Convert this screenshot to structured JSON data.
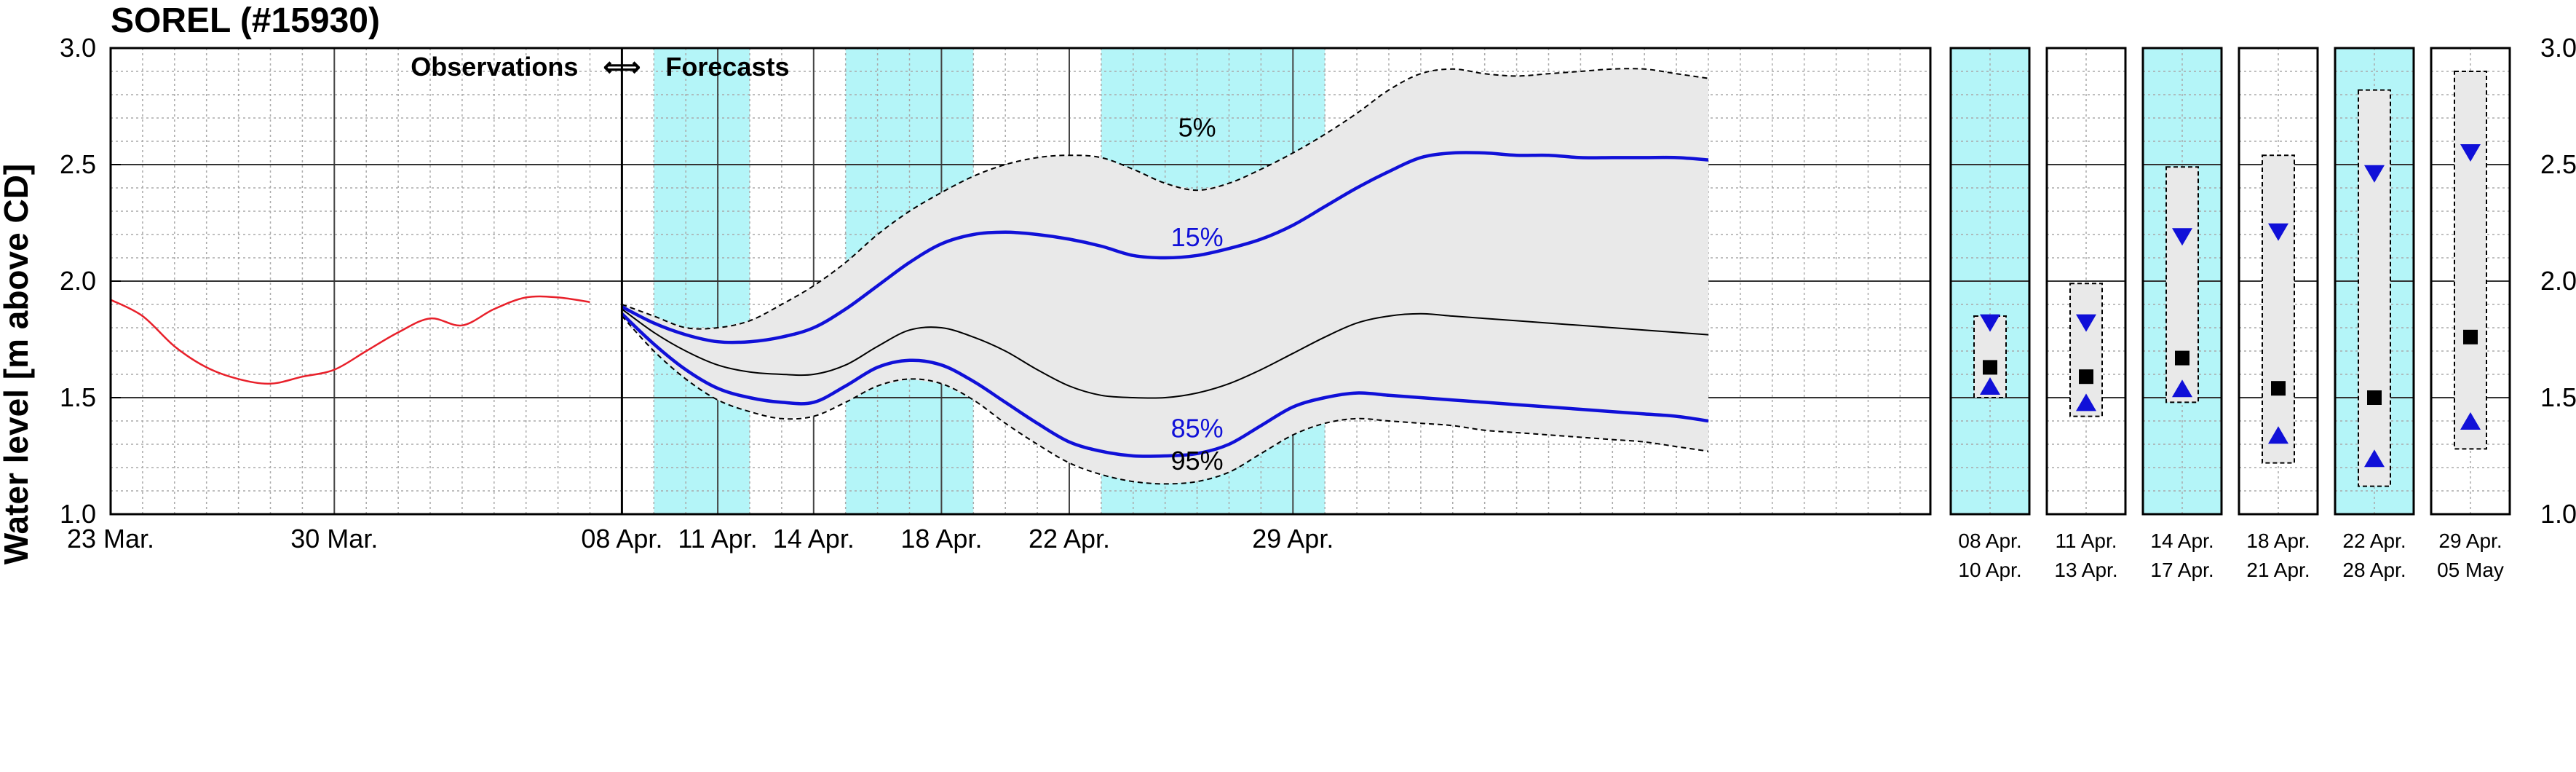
{
  "title": "SOREL (#15930)",
  "ylabel": "Water level [m above CD]",
  "divider_label": {
    "left": "Observations",
    "arrow": "⟺",
    "right": "Forecasts"
  },
  "colors": {
    "shade": "#b4f5f8",
    "band": "#e9e9e9",
    "observed": "#e8202a",
    "percentile": "#1010d8",
    "median": "#000000"
  },
  "chart_data": [
    {
      "type": "line",
      "title": "SOREL (#15930)",
      "xlabel": "",
      "ylabel": "Water level [m above CD]",
      "ylim": [
        1.0,
        3.0
      ],
      "xlim": [
        0,
        50
      ],
      "x_unit": "days from 23 Mar.",
      "grid": true,
      "y_ticks": [
        "1.0",
        "1.5",
        "2.0",
        "2.5",
        "3.0"
      ],
      "x_ticks": [
        {
          "x": 0,
          "label": "23 Mar."
        },
        {
          "x": 7,
          "label": "30 Mar."
        },
        {
          "x": 16,
          "label": "08 Apr."
        },
        {
          "x": 19,
          "label": "11 Apr."
        },
        {
          "x": 22,
          "label": "14 Apr."
        },
        {
          "x": 26,
          "label": "18 Apr."
        },
        {
          "x": 30,
          "label": "22 Apr."
        },
        {
          "x": 37,
          "label": "29 Apr."
        }
      ],
      "shaded_periods": [
        [
          17,
          20
        ],
        [
          23,
          27
        ],
        [
          31,
          38
        ]
      ],
      "observations_end_x": 16,
      "annotations": [
        "Observations",
        "Forecasts",
        "5%",
        "15%",
        "85%",
        "95%"
      ],
      "series": [
        {
          "name": "observed",
          "style": "red",
          "x": [
            0,
            1,
            2,
            3,
            4,
            5,
            6,
            7,
            8,
            9,
            10,
            11,
            12,
            13,
            14,
            15
          ],
          "y": [
            1.92,
            1.85,
            1.72,
            1.63,
            1.58,
            1.56,
            1.59,
            1.62,
            1.7,
            1.78,
            1.84,
            1.81,
            1.88,
            1.93,
            1.93,
            1.91
          ]
        },
        {
          "name": "5%",
          "label_x": 34,
          "label_y": 2.62,
          "style": "dashed",
          "x": [
            16,
            17,
            18,
            19,
            20,
            21,
            22,
            23,
            24,
            25,
            26,
            27,
            28,
            29,
            30,
            31,
            32,
            33,
            34,
            35,
            36,
            37,
            38,
            39,
            40,
            41,
            42,
            43,
            44,
            45,
            46,
            47,
            48,
            49,
            50
          ],
          "y": [
            1.9,
            1.85,
            1.8,
            1.8,
            1.83,
            1.9,
            1.98,
            2.08,
            2.2,
            2.3,
            2.38,
            2.45,
            2.5,
            2.53,
            2.54,
            2.53,
            2.48,
            2.42,
            2.39,
            2.42,
            2.48,
            2.55,
            2.63,
            2.72,
            2.82,
            2.89,
            2.91,
            2.89,
            2.88,
            2.89,
            2.9,
            2.91,
            2.91,
            2.89,
            2.87
          ]
        },
        {
          "name": "15%",
          "label_x": 34,
          "label_y": 2.15,
          "style": "blue",
          "x": [
            16,
            17,
            18,
            19,
            20,
            21,
            22,
            23,
            24,
            25,
            26,
            27,
            28,
            29,
            30,
            31,
            32,
            33,
            34,
            35,
            36,
            37,
            38,
            39,
            40,
            41,
            42,
            43,
            44,
            45,
            46,
            47,
            48,
            49,
            50
          ],
          "y": [
            1.89,
            1.82,
            1.77,
            1.74,
            1.74,
            1.76,
            1.8,
            1.88,
            1.98,
            2.08,
            2.16,
            2.2,
            2.21,
            2.2,
            2.18,
            2.15,
            2.11,
            2.1,
            2.11,
            2.14,
            2.18,
            2.24,
            2.32,
            2.4,
            2.47,
            2.53,
            2.55,
            2.55,
            2.54,
            2.54,
            2.53,
            2.53,
            2.53,
            2.53,
            2.52
          ]
        },
        {
          "name": "median",
          "style": "black",
          "x": [
            16,
            17,
            18,
            19,
            20,
            21,
            22,
            23,
            24,
            25,
            26,
            27,
            28,
            29,
            30,
            31,
            32,
            33,
            34,
            35,
            36,
            37,
            38,
            39,
            40,
            41,
            42,
            43,
            44,
            45,
            46,
            47,
            48,
            49,
            50
          ],
          "y": [
            1.88,
            1.78,
            1.7,
            1.64,
            1.61,
            1.6,
            1.6,
            1.64,
            1.72,
            1.79,
            1.8,
            1.76,
            1.7,
            1.62,
            1.55,
            1.51,
            1.5,
            1.5,
            1.52,
            1.56,
            1.62,
            1.69,
            1.76,
            1.82,
            1.85,
            1.86,
            1.85,
            1.84,
            1.83,
            1.82,
            1.81,
            1.8,
            1.79,
            1.78,
            1.77
          ]
        },
        {
          "name": "85%",
          "label_x": 34,
          "label_y": 1.33,
          "style": "blue",
          "x": [
            16,
            17,
            18,
            19,
            20,
            21,
            22,
            23,
            24,
            25,
            26,
            27,
            28,
            29,
            30,
            31,
            32,
            33,
            34,
            35,
            36,
            37,
            38,
            39,
            40,
            41,
            42,
            43,
            44,
            45,
            46,
            47,
            48,
            49,
            50
          ],
          "y": [
            1.86,
            1.73,
            1.62,
            1.54,
            1.5,
            1.48,
            1.48,
            1.55,
            1.63,
            1.66,
            1.64,
            1.57,
            1.48,
            1.39,
            1.31,
            1.27,
            1.25,
            1.25,
            1.26,
            1.3,
            1.38,
            1.46,
            1.5,
            1.52,
            1.51,
            1.5,
            1.49,
            1.48,
            1.47,
            1.46,
            1.45,
            1.44,
            1.43,
            1.42,
            1.4
          ]
        },
        {
          "name": "95%",
          "label_x": 34,
          "label_y": 1.19,
          "style": "dashed",
          "x": [
            16,
            17,
            18,
            19,
            20,
            21,
            22,
            23,
            24,
            25,
            26,
            27,
            28,
            29,
            30,
            31,
            32,
            33,
            34,
            35,
            36,
            37,
            38,
            39,
            40,
            41,
            42,
            43,
            44,
            45,
            46,
            47,
            48,
            49,
            50
          ],
          "y": [
            1.85,
            1.7,
            1.58,
            1.49,
            1.44,
            1.41,
            1.42,
            1.48,
            1.55,
            1.58,
            1.56,
            1.49,
            1.39,
            1.3,
            1.22,
            1.17,
            1.14,
            1.13,
            1.14,
            1.18,
            1.26,
            1.34,
            1.39,
            1.41,
            1.4,
            1.39,
            1.38,
            1.36,
            1.35,
            1.34,
            1.33,
            1.32,
            1.31,
            1.29,
            1.27
          ]
        }
      ]
    },
    {
      "type": "scatter",
      "title": "",
      "ylim": [
        1.0,
        3.0
      ],
      "y_ticks": [
        "1.0",
        "1.5",
        "2.0",
        "2.5",
        "3.0"
      ],
      "grid": true,
      "legend": "none",
      "panels": [
        {
          "label1": "08 Apr.",
          "label2": "10 Apr.",
          "shaded": true,
          "box": [
            1.5,
            1.85
          ],
          "median": 1.63,
          "high": 1.82,
          "low": 1.55
        },
        {
          "label1": "11 Apr.",
          "label2": "13 Apr.",
          "shaded": false,
          "box": [
            1.42,
            1.99
          ],
          "median": 1.59,
          "high": 1.82,
          "low": 1.48
        },
        {
          "label1": "14 Apr.",
          "label2": "17 Apr.",
          "shaded": true,
          "box": [
            1.48,
            2.49
          ],
          "median": 1.67,
          "high": 2.19,
          "low": 1.54
        },
        {
          "label1": "18 Apr.",
          "label2": "21 Apr.",
          "shaded": false,
          "box": [
            1.22,
            2.54
          ],
          "median": 1.54,
          "high": 2.21,
          "low": 1.34
        },
        {
          "label1": "22 Apr.",
          "label2": "28 Apr.",
          "shaded": true,
          "box": [
            1.12,
            2.82
          ],
          "median": 1.5,
          "high": 2.46,
          "low": 1.24
        },
        {
          "label1": "29 Apr.",
          "label2": "05 May",
          "shaded": false,
          "box": [
            1.28,
            2.9
          ],
          "median": 1.76,
          "high": 2.55,
          "low": 1.4
        }
      ]
    }
  ]
}
